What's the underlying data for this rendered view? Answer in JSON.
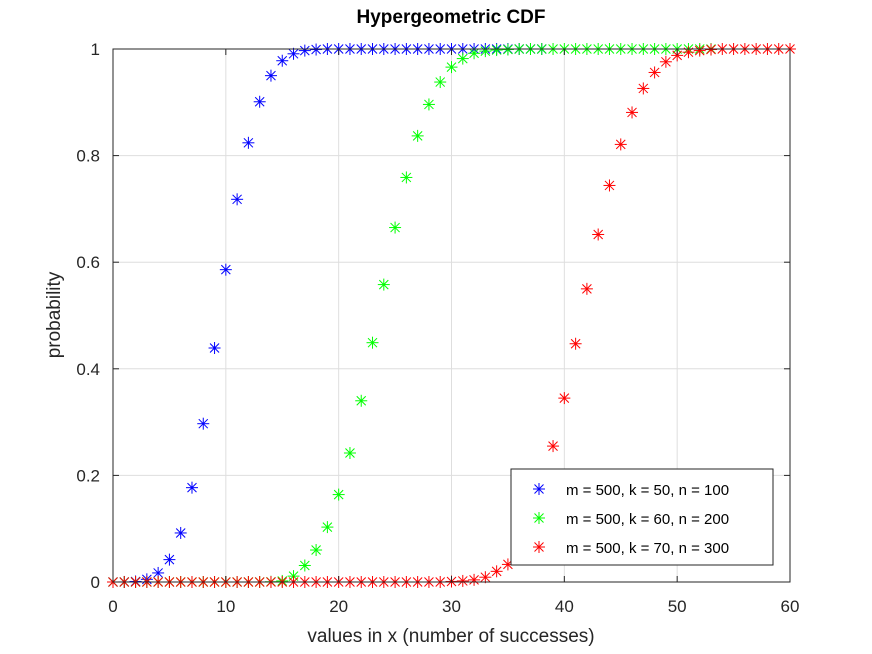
{
  "chart_data": {
    "type": "scatter",
    "title": "Hypergeometric CDF",
    "xlabel": "values in x (number of successes)",
    "ylabel": "probability",
    "xlim": [
      0,
      60
    ],
    "ylim": [
      0,
      1
    ],
    "xticks": [
      0,
      10,
      20,
      30,
      40,
      50,
      60
    ],
    "yticks": [
      0,
      0.2,
      0.4,
      0.6,
      0.8,
      1
    ],
    "ytick_labels": [
      "0",
      "0.2",
      "0.4",
      "0.6",
      "0.8",
      "1"
    ],
    "grid": true,
    "legend_position": "bottom-right",
    "marker": "asterisk",
    "x": [
      0,
      1,
      2,
      3,
      4,
      5,
      6,
      7,
      8,
      9,
      10,
      11,
      12,
      13,
      14,
      15,
      16,
      17,
      18,
      19,
      20,
      21,
      22,
      23,
      24,
      25,
      26,
      27,
      28,
      29,
      30,
      31,
      32,
      33,
      34,
      35,
      36,
      37,
      38,
      39,
      40,
      41,
      42,
      43,
      44,
      45,
      46,
      47,
      48,
      49,
      50,
      51,
      52,
      53,
      54,
      55,
      56,
      57,
      58,
      59,
      60
    ],
    "series": [
      {
        "name": "m = 500, k = 50, n = 100",
        "color": "#0000ff",
        "values": [
          0.0,
          0.0001,
          0.001,
          0.005,
          0.017,
          0.042,
          0.092,
          0.177,
          0.297,
          0.439,
          0.586,
          0.718,
          0.824,
          0.901,
          0.95,
          0.978,
          0.991,
          0.997,
          0.999,
          1.0,
          1.0,
          1.0,
          1.0,
          1.0,
          1.0,
          1.0,
          1.0,
          1.0,
          1.0,
          1.0,
          1.0,
          1.0,
          1.0,
          1.0,
          1.0,
          1.0,
          1.0,
          1.0,
          1.0,
          null,
          null,
          null,
          null,
          null,
          null,
          null,
          null,
          null,
          null,
          null,
          null,
          null,
          null,
          null,
          null,
          null,
          null,
          null,
          null,
          null,
          null
        ]
      },
      {
        "name": "m = 500, k = 60, n = 200",
        "color": "#00ff00",
        "values": [
          0.0,
          0.0,
          0.0,
          0.0,
          0.0,
          0.0,
          0.0,
          0.0,
          0.0,
          0.0,
          0.0,
          0.0,
          0.0,
          0.0,
          0.0005,
          0.002,
          0.011,
          0.031,
          0.06,
          0.103,
          0.164,
          0.242,
          0.34,
          0.449,
          0.558,
          0.665,
          0.759,
          0.837,
          0.896,
          0.938,
          0.966,
          0.982,
          0.992,
          0.996,
          0.998,
          0.999,
          1.0,
          1.0,
          1.0,
          1.0,
          1.0,
          1.0,
          1.0,
          1.0,
          1.0,
          1.0,
          1.0,
          1.0,
          1.0,
          1.0,
          1.0,
          1.0,
          1.0,
          1.0,
          null,
          null,
          null,
          null,
          null,
          null,
          null
        ]
      },
      {
        "name": "m = 500, k = 70, n = 300",
        "color": "#ff0000",
        "values": [
          0.0,
          0.0,
          0.0,
          0.0,
          0.0,
          0.0,
          0.0,
          0.0,
          0.0,
          0.0,
          0.0,
          0.0,
          0.0,
          0.0,
          0.0,
          0.0,
          0.0,
          0.0,
          0.0,
          0.0,
          0.0,
          0.0,
          0.0,
          0.0,
          0.0,
          0.0,
          0.0,
          0.0,
          0.0,
          0.0,
          0.001,
          0.002,
          0.004,
          0.009,
          0.02,
          0.033,
          0.056,
          0.096,
          0.16,
          0.255,
          0.345,
          0.447,
          0.55,
          0.652,
          0.744,
          0.821,
          0.881,
          0.926,
          0.956,
          0.976,
          0.988,
          0.994,
          0.997,
          0.999,
          1.0,
          1.0,
          1.0,
          1.0,
          1.0,
          1.0,
          1.0
        ]
      }
    ]
  }
}
